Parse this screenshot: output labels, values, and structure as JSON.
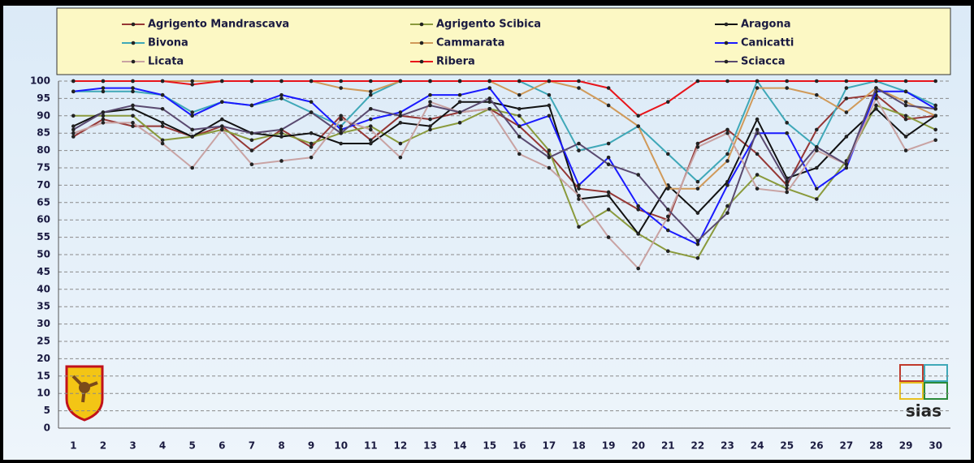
{
  "chart_data": {
    "type": "line",
    "categories": [
      1,
      2,
      3,
      4,
      5,
      6,
      7,
      8,
      9,
      10,
      11,
      12,
      13,
      14,
      15,
      16,
      17,
      18,
      19,
      20,
      21,
      22,
      23,
      24,
      25,
      26,
      27,
      28,
      29,
      30
    ],
    "ylim": [
      0,
      100
    ],
    "yticks": [
      0,
      5,
      10,
      15,
      20,
      25,
      30,
      35,
      40,
      45,
      50,
      55,
      60,
      65,
      70,
      75,
      80,
      85,
      90,
      95,
      100
    ],
    "grid": true,
    "legend": "top",
    "logo_text": "sias",
    "series": [
      {
        "name": "Agrigento Mandrascava",
        "color": "#953735",
        "values": [
          84,
          89,
          87,
          87,
          84,
          87,
          80,
          86,
          81,
          90,
          83,
          90,
          89,
          91,
          92,
          87,
          79,
          69,
          68,
          63,
          60,
          82,
          86,
          79,
          70,
          86,
          95,
          96,
          89,
          90
        ]
      },
      {
        "name": "Agrigento Scibica",
        "color": "#8a9a3c",
        "values": [
          90,
          90,
          90,
          83,
          84,
          86,
          83,
          85,
          82,
          85,
          87,
          82,
          86,
          88,
          92,
          90,
          80,
          58,
          63,
          56,
          51,
          49,
          64,
          73,
          69,
          66,
          77,
          93,
          90,
          86
        ]
      },
      {
        "name": "Aragona",
        "color": "#111111",
        "values": [
          87,
          91,
          92,
          88,
          84,
          89,
          85,
          84,
          85,
          82,
          82,
          88,
          87,
          94,
          94,
          92,
          93,
          66,
          67,
          56,
          70,
          62,
          71,
          89,
          72,
          75,
          84,
          92,
          84,
          90
        ]
      },
      {
        "name": "Bivona",
        "color": "#3fa8b8",
        "values": [
          97,
          97,
          97,
          96,
          91,
          94,
          93,
          95,
          91,
          87,
          96,
          100,
          100,
          100,
          100,
          100,
          96,
          80,
          82,
          87,
          79,
          71,
          79,
          100,
          88,
          81,
          98,
          100,
          97,
          93
        ]
      },
      {
        "name": "Cammarata",
        "color": "#d09a5a",
        "values": [
          100,
          100,
          100,
          100,
          100,
          100,
          100,
          100,
          100,
          98,
          97,
          100,
          100,
          100,
          100,
          96,
          100,
          98,
          93,
          87,
          69,
          69,
          77,
          98,
          98,
          96,
          91,
          98,
          94,
          90
        ]
      },
      {
        "name": "Canicatti",
        "color": "#1a1aff",
        "values": [
          97,
          98,
          98,
          96,
          90,
          94,
          93,
          96,
          94,
          86,
          89,
          91,
          96,
          96,
          98,
          87,
          90,
          70,
          78,
          64,
          57,
          53,
          70,
          85,
          85,
          69,
          75,
          97,
          97,
          92
        ]
      },
      {
        "name": "Licata",
        "color": "#c9a3a3",
        "values": [
          85,
          88,
          88,
          82,
          75,
          86,
          76,
          77,
          78,
          89,
          86,
          78,
          94,
          91,
          92,
          79,
          75,
          67,
          55,
          46,
          61,
          81,
          85,
          69,
          68,
          80,
          76,
          95,
          80,
          83
        ]
      },
      {
        "name": "Ribera",
        "color": "#e8141a",
        "values": [
          100,
          100,
          100,
          100,
          99,
          100,
          100,
          100,
          100,
          100,
          100,
          100,
          100,
          100,
          100,
          100,
          100,
          100,
          98,
          90,
          94,
          100,
          100,
          100,
          100,
          100,
          100,
          100,
          100,
          100
        ]
      },
      {
        "name": "Sciacca",
        "color": "#5a4a70",
        "values": [
          86,
          91,
          93,
          92,
          86,
          87,
          85,
          86,
          91,
          85,
          92,
          90,
          93,
          91,
          95,
          84,
          78,
          82,
          76,
          73,
          63,
          54,
          62,
          86,
          71,
          81,
          76,
          98,
          93,
          92
        ]
      }
    ]
  }
}
